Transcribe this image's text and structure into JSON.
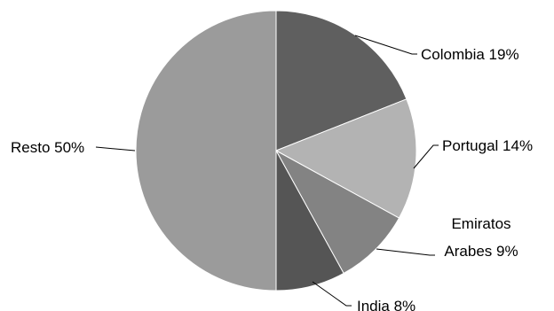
{
  "chart_data": {
    "type": "pie",
    "title": "",
    "slices": [
      {
        "name": "Colombia",
        "label": "Colombia 19%",
        "value": 19,
        "color": "#5f5f5f"
      },
      {
        "name": "Portugal",
        "label": "Portugal 14%",
        "value": 14,
        "color": "#b3b3b3"
      },
      {
        "name": "Emiratos Arabes",
        "label_lines": [
          "Emiratos",
          "Arabes 9%"
        ],
        "value": 9,
        "color": "#838383"
      },
      {
        "name": "India",
        "label": "India 8%",
        "value": 8,
        "color": "#555555"
      },
      {
        "name": "Resto",
        "label": "Resto 50%",
        "value": 50,
        "color": "#9b9b9b"
      }
    ],
    "legend": "none",
    "start_angle": "12 o'clock",
    "direction": "clockwise"
  }
}
